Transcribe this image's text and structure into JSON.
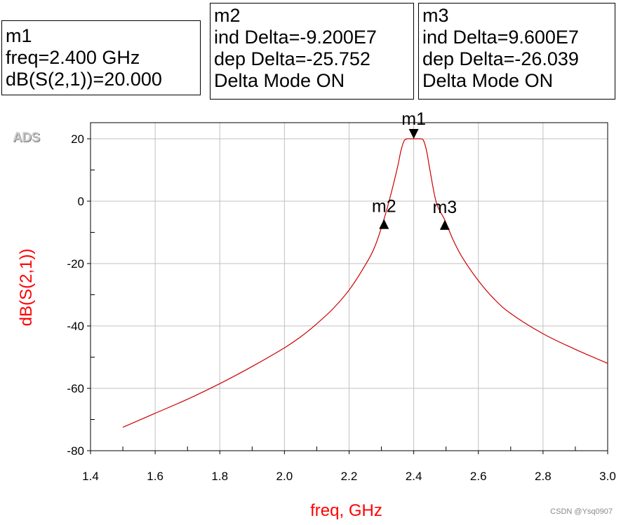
{
  "markers": [
    {
      "id": "m1",
      "lines": [
        "m1",
        "freq=2.400 GHz",
        "dB(S(2,1))=20.000"
      ]
    },
    {
      "id": "m2",
      "lines": [
        "m2",
        "ind Delta=-9.200E7",
        "dep Delta=-25.752",
        "Delta Mode ON"
      ]
    },
    {
      "id": "m3",
      "lines": [
        "m3",
        "ind Delta=9.600E7",
        "dep Delta=-26.039",
        "Delta Mode ON"
      ]
    }
  ],
  "logo_text": "ADS",
  "watermark": "CSDN @Ysq0907",
  "colors": {
    "trace": "#cc0000",
    "grid": "#c0c0c0",
    "axis_label": "#ff0000"
  },
  "chart_data": {
    "type": "line",
    "xlabel": "freq, GHz",
    "ylabel": "dB(S(2,1))",
    "xlim": [
      1.4,
      3.0
    ],
    "ylim": [
      -80,
      25
    ],
    "x_ticks": [
      1.4,
      1.6,
      1.8,
      2.0,
      2.2,
      2.4,
      2.6,
      2.8,
      3.0
    ],
    "x_tick_labels": [
      "1.4",
      "1.6",
      "1.8",
      "2.0",
      "2.2",
      "2.4",
      "2.6",
      "2.8",
      "3.0"
    ],
    "y_ticks": [
      20,
      0,
      -20,
      -40,
      -60,
      -80
    ],
    "y_tick_labels": [
      "20",
      "0",
      "-20",
      "-40",
      "-60",
      "-80"
    ],
    "grid": true,
    "series": [
      {
        "name": "dB(S(2,1))",
        "x": [
          1.5,
          1.6,
          1.7,
          1.8,
          1.9,
          2.0,
          2.05,
          2.1,
          2.15,
          2.2,
          2.25,
          2.28,
          2.308,
          2.33,
          2.35,
          2.36,
          2.37,
          2.38,
          2.39,
          2.4,
          2.41,
          2.42,
          2.43,
          2.44,
          2.45,
          2.47,
          2.496,
          2.52,
          2.55,
          2.6,
          2.65,
          2.7,
          2.8,
          2.9,
          3.0
        ],
        "y": [
          -72.5,
          -68,
          -63.5,
          -58.5,
          -53,
          -47,
          -43.5,
          -39.3,
          -34.5,
          -28.5,
          -20.5,
          -14.5,
          -5.8,
          2.5,
          11,
          16,
          19.3,
          20,
          20,
          20,
          20,
          20,
          19.5,
          16,
          10,
          -0.5,
          -6,
          -12,
          -18,
          -25.5,
          -31.5,
          -36,
          -42.5,
          -47.5,
          -52
        ]
      }
    ],
    "markers": [
      {
        "name": "m1",
        "x": 2.4,
        "y": 20.0,
        "direction": "down"
      },
      {
        "name": "m2",
        "x": 2.308,
        "y": -5.752,
        "direction": "up"
      },
      {
        "name": "m3",
        "x": 2.496,
        "y": -6.039,
        "direction": "up"
      }
    ]
  }
}
